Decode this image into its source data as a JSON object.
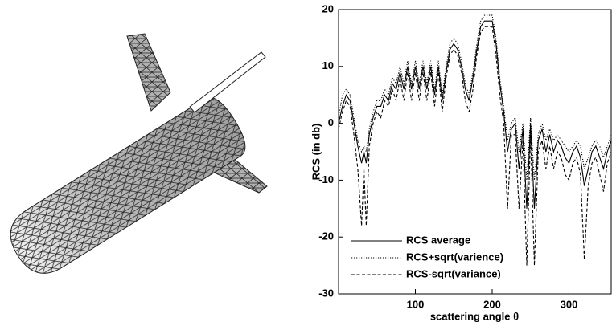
{
  "chart_data": {
    "type": "line",
    "xlabel": "scattering angle θ",
    "ylabel": "RCS (in db)",
    "x": [
      0,
      5,
      10,
      15,
      20,
      25,
      30,
      33,
      36,
      40,
      45,
      50,
      55,
      60,
      65,
      70,
      75,
      80,
      85,
      90,
      95,
      100,
      105,
      110,
      115,
      120,
      125,
      130,
      135,
      140,
      145,
      150,
      155,
      160,
      165,
      170,
      175,
      180,
      185,
      190,
      195,
      200,
      205,
      210,
      215,
      220,
      225,
      230,
      235,
      240,
      245,
      250,
      255,
      260,
      265,
      270,
      275,
      280,
      285,
      290,
      295,
      300,
      305,
      310,
      315,
      320,
      325,
      330,
      335,
      340,
      345,
      350,
      355
    ],
    "series": [
      {
        "name": "RCS average",
        "color": "#000000",
        "dash": "solid",
        "values": [
          0,
          3,
          5,
          4,
          0,
          -4,
          -7,
          -5,
          -7,
          -2,
          1,
          3,
          3,
          5,
          4,
          7,
          6,
          9,
          6,
          10,
          6,
          10,
          6,
          10,
          6,
          10,
          5,
          10,
          4,
          9,
          13,
          14,
          13,
          10,
          6,
          4,
          8,
          13,
          17,
          18,
          18,
          18,
          14,
          7,
          2,
          -5,
          -1,
          0,
          -8,
          -1,
          -15,
          0,
          -15,
          -3,
          -1,
          -5,
          -2,
          -5,
          -3,
          -4,
          -6,
          -7,
          -5,
          -4,
          -6,
          -11,
          -8,
          -5,
          -4,
          -6,
          -8,
          -5,
          -3
        ]
      },
      {
        "name": "RCS+sqrt(varience)",
        "color": "#000000",
        "dash": "dotted",
        "values": [
          1,
          5,
          6,
          5,
          1,
          -3,
          -5,
          -4,
          -5,
          -1,
          2,
          4,
          4,
          6,
          5,
          8,
          7,
          10,
          7,
          11,
          7,
          11,
          7,
          11,
          7,
          11,
          6,
          11,
          5,
          10,
          14,
          15,
          14,
          11,
          7,
          5,
          9,
          14,
          18,
          19,
          19,
          19,
          15,
          8,
          3,
          -3,
          0,
          1,
          -5,
          0,
          -10,
          1,
          -10,
          -2,
          0,
          -3,
          -1,
          -3,
          -2,
          -3,
          -4,
          -5,
          -4,
          -3,
          -4,
          -8,
          -6,
          -4,
          -3,
          -4,
          -6,
          -4,
          -2
        ]
      },
      {
        "name": "RCS-sqrt(variance)",
        "color": "#000000",
        "dash": "dashed",
        "values": [
          -1,
          2,
          4,
          3,
          -2,
          -8,
          -18,
          -8,
          -18,
          -4,
          0,
          2,
          1,
          4,
          3,
          6,
          4,
          8,
          4,
          9,
          4,
          9,
          4,
          9,
          4,
          9,
          3,
          9,
          2,
          8,
          12,
          13,
          12,
          9,
          4,
          2,
          6,
          12,
          16,
          17,
          17,
          17,
          12,
          5,
          0,
          -15,
          -2,
          -2,
          -15,
          -3,
          -25,
          -2,
          -25,
          -5,
          -3,
          -8,
          -4,
          -8,
          -5,
          -6,
          -9,
          -10,
          -7,
          -6,
          -9,
          -24,
          -11,
          -7,
          -6,
          -9,
          -12,
          -7,
          -5
        ]
      }
    ],
    "xlim": [
      0,
      355
    ],
    "ylim": [
      -30,
      20
    ],
    "xticks": [
      100,
      200,
      300
    ],
    "yticks": [
      -30,
      -20,
      -10,
      0,
      10,
      20
    ]
  }
}
